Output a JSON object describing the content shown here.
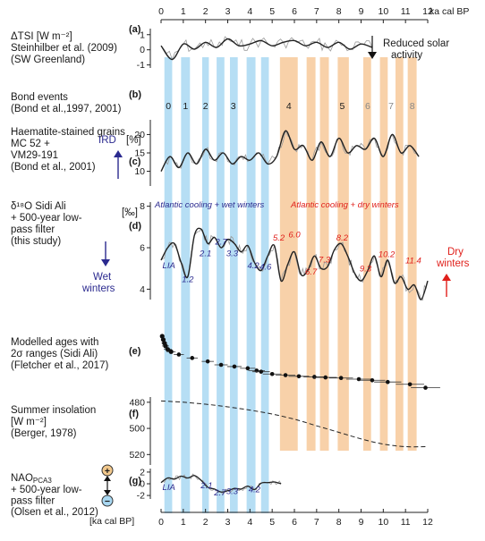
{
  "chart_data": {
    "type": "line",
    "top_axis_label": "ka cal BP",
    "bottom_axis_label": "[ka cal BP]",
    "x_ticks": [
      "0",
      "1",
      "2",
      "3",
      "4",
      "5",
      "6",
      "7",
      "8",
      "9",
      "10",
      "11",
      "12"
    ],
    "xlim": [
      0,
      12
    ],
    "colors": {
      "cool_wet_band": "#a9d8f2",
      "cool_dry_band": "#f7c99a",
      "blue_text": "#2b2a8f",
      "red_text": "#e0201b",
      "curve": "#222222",
      "raw": "#9a9a9a"
    },
    "bands_blue": [
      [
        0.15,
        0.5
      ],
      [
        0.9,
        1.3
      ],
      [
        1.85,
        2.15
      ],
      [
        2.5,
        2.85
      ],
      [
        3.1,
        3.45
      ],
      [
        3.85,
        4.25
      ],
      [
        4.5,
        4.85
      ]
    ],
    "bands_orange": [
      [
        5.35,
        6.15
      ],
      [
        6.55,
        6.95
      ],
      [
        7.15,
        7.55
      ],
      [
        7.95,
        8.45
      ],
      [
        9.1,
        9.45
      ],
      [
        9.85,
        10.2
      ],
      [
        10.55,
        10.9
      ],
      [
        11.1,
        11.5
      ]
    ],
    "panels": {
      "a": {
        "letter": "(a)",
        "label_lines": [
          "ΔTSI  [W m⁻²]",
          "Steinhilber et al. (2009)",
          "(SW Greenland)"
        ],
        "y_ticks": [
          "1",
          "0",
          "-1"
        ],
        "ylim": [
          -1.2,
          1.4
        ],
        "side_note": [
          "Reduced solar",
          "activity"
        ],
        "x": [
          0,
          0.5,
          1,
          1.5,
          2,
          2.5,
          3,
          3.5,
          4,
          4.5,
          5,
          5.5,
          6,
          6.5,
          7,
          7.5,
          8,
          8.5,
          9,
          9.5
        ],
        "y": [
          0.3,
          -0.5,
          0.4,
          0.1,
          0.5,
          0.2,
          0.7,
          0.3,
          0.4,
          0.6,
          0.3,
          0.5,
          0.6,
          0.3,
          0.5,
          0.2,
          0.5,
          0.1,
          0.4,
          0.2
        ]
      },
      "b": {
        "letter": "(b)",
        "label_lines": [
          "Bond events",
          "(Bond et al.,1997, 2001)"
        ],
        "events": [
          {
            "label": "0",
            "x": 0.33,
            "color": "#1a1a1a"
          },
          {
            "label": "1",
            "x": 1.1,
            "color": "#1a1a1a"
          },
          {
            "label": "2",
            "x": 2.0,
            "color": "#1a1a1a"
          },
          {
            "label": "3",
            "x": 3.25,
            "color": "#1a1a1a"
          },
          {
            "label": "4",
            "x": 5.75,
            "color": "#1a1a1a"
          },
          {
            "label": "5",
            "x": 8.15,
            "color": "#1a1a1a"
          },
          {
            "label": "6",
            "x": 9.3,
            "color": "#888888"
          },
          {
            "label": "7",
            "x": 10.35,
            "color": "#888888"
          },
          {
            "label": "8",
            "x": 11.3,
            "color": "#888888"
          }
        ]
      },
      "c": {
        "letter": "(c)",
        "label_lines": [
          "Haematite-stained grains",
          "MC 52 +",
          "VM29-191",
          "(Bond et al., 2001)"
        ],
        "unit": "[%]",
        "side_label": "IRD",
        "y_ticks": [
          "20",
          "15",
          "10"
        ],
        "ylim": [
          6,
          24
        ],
        "x": [
          0,
          0.4,
          0.8,
          1.2,
          1.6,
          2,
          2.4,
          2.8,
          3.2,
          3.6,
          4,
          4.4,
          4.8,
          5.2,
          5.6,
          6,
          6.4,
          6.8,
          7.2,
          7.6,
          8,
          8.4,
          8.8,
          9.2,
          9.6,
          10,
          10.4,
          10.8,
          11.2,
          11.6
        ],
        "y": [
          10,
          14,
          11,
          15,
          12,
          16,
          13,
          15,
          12,
          14,
          13,
          15,
          12,
          14,
          21,
          16,
          17,
          13,
          18,
          14,
          19,
          15,
          17,
          16,
          19,
          14,
          20,
          15,
          17,
          14
        ]
      },
      "d": {
        "letter": "(d)",
        "label_lines": [
          "δ¹⁸O Sidi Ali",
          "+ 500-year low-",
          "pass filter",
          "(this study)"
        ],
        "unit": "[‰]",
        "left_note": [
          "Wet",
          "winters"
        ],
        "right_note": [
          "Dry",
          "winters"
        ],
        "band_titles": {
          "blue": "Atlantic cooling + wet winters",
          "orange": "Atlantic cooling + dry winters"
        },
        "y_ticks": [
          "8",
          "6",
          "4"
        ],
        "ylim": [
          3.5,
          8.2
        ],
        "x": [
          0,
          0.3,
          0.6,
          0.9,
          1.2,
          1.5,
          1.8,
          2.1,
          2.4,
          2.7,
          3,
          3.3,
          3.6,
          3.9,
          4.2,
          4.5,
          4.8,
          5.1,
          5.4,
          5.7,
          6,
          6.3,
          6.6,
          6.9,
          7.2,
          7.5,
          7.8,
          8.1,
          8.4,
          8.7,
          9,
          9.3,
          9.6,
          9.9,
          10.2,
          10.5,
          10.8,
          11.1,
          11.4,
          11.7,
          12
        ],
        "y": [
          5.4,
          6.0,
          6.2,
          5.3,
          4.6,
          6.6,
          6.9,
          6.2,
          6.5,
          6.0,
          6.4,
          6.2,
          5.8,
          6.1,
          5.3,
          4.9,
          5.6,
          6.1,
          4.4,
          5.2,
          5.8,
          4.7,
          4.9,
          5.6,
          5.0,
          5.1,
          5.9,
          6.2,
          5.6,
          4.8,
          4.4,
          4.9,
          5.6,
          4.6,
          5.4,
          4.3,
          4.6,
          4.0,
          4.2,
          3.5,
          4.4
        ],
        "annotations": [
          {
            "text": "LIA",
            "x": 0.35,
            "y": 5.0,
            "color": "#2b2a8f"
          },
          {
            "text": "1.2",
            "x": 1.2,
            "y": 4.35,
            "color": "#2b2a8f"
          },
          {
            "text": "2.1",
            "x": 2.0,
            "y": 5.6,
            "color": "#2b2a8f"
          },
          {
            "text": "2.7",
            "x": 2.7,
            "y": 6.15,
            "color": "#2b2a8f"
          },
          {
            "text": "3.3",
            "x": 3.2,
            "y": 5.6,
            "color": "#2b2a8f"
          },
          {
            "text": "4.2",
            "x": 4.15,
            "y": 5.0,
            "color": "#2b2a8f"
          },
          {
            "text": "4.6",
            "x": 4.7,
            "y": 4.95,
            "color": "#2b2a8f"
          },
          {
            "text": "5.2",
            "x": 5.3,
            "y": 6.35,
            "color": "#e0201b"
          },
          {
            "text": "6.0",
            "x": 6.0,
            "y": 6.5,
            "color": "#e0201b"
          },
          {
            "text": "6.7",
            "x": 6.75,
            "y": 4.7,
            "color": "#e0201b"
          },
          {
            "text": "7.3",
            "x": 7.35,
            "y": 5.3,
            "color": "#e0201b"
          },
          {
            "text": "8.2",
            "x": 8.15,
            "y": 6.35,
            "color": "#e0201b"
          },
          {
            "text": "9.3",
            "x": 9.2,
            "y": 4.85,
            "color": "#e0201b"
          },
          {
            "text": "10.2",
            "x": 10.15,
            "y": 5.55,
            "color": "#e0201b"
          },
          {
            "text": "11.4",
            "x": 11.35,
            "y": 5.25,
            "color": "#e0201b"
          }
        ]
      },
      "e": {
        "letter": "(e)",
        "label_lines": [
          "Modelled ages with",
          "2σ ranges (Sidi Ali)",
          "(Fletcher et al., 2017)"
        ],
        "x": [
          0.05,
          0.1,
          0.15,
          0.2,
          0.3,
          0.45,
          0.8,
          1.4,
          2.1,
          2.7,
          3.3,
          3.9,
          4.3,
          4.5,
          5.0,
          5.6,
          6.2,
          6.9,
          7.4,
          8.1,
          8.9,
          9.5,
          10.2,
          11.2,
          11.9
        ],
        "y": [
          0.0,
          0.06,
          0.12,
          0.17,
          0.23,
          0.27,
          0.32,
          0.38,
          0.44,
          0.5,
          0.53,
          0.56,
          0.6,
          0.62,
          0.66,
          0.68,
          0.7,
          0.71,
          0.72,
          0.73,
          0.75,
          0.77,
          0.8,
          0.84,
          0.9
        ]
      },
      "f": {
        "letter": "(f)",
        "label_lines": [
          "Summer insolation",
          "[W m⁻²]",
          "(Berger, 1978)"
        ],
        "y_ticks": [
          "480",
          "500",
          "520"
        ],
        "ylim": [
          476,
          528
        ],
        "x": [
          0,
          1,
          2,
          3,
          4,
          5,
          6,
          7,
          8,
          9,
          10,
          11,
          12
        ],
        "y": [
          479,
          480,
          481.5,
          483.5,
          486,
          489,
          493,
          498,
          503,
          508,
          512,
          514,
          514
        ]
      },
      "g": {
        "letter": "(g)",
        "label_lines": [
          "NAO_PCA3",
          "+ 500-year low-",
          "pass filter",
          "(Olsen et al., 2012)"
        ],
        "plus_sign": "+",
        "minus_sign": "−",
        "y_ticks": [
          "2",
          "0",
          "-2"
        ],
        "ylim": [
          -2.6,
          2.6
        ],
        "x": [
          0,
          0.3,
          0.6,
          0.9,
          1.2,
          1.5,
          1.8,
          2.1,
          2.4,
          2.7,
          3,
          3.3,
          3.6,
          3.9,
          4.2,
          4.5,
          4.8,
          5.1,
          5.4
        ],
        "y": [
          0.2,
          1.0,
          0.8,
          1.3,
          1.0,
          1.4,
          0.6,
          -0.6,
          -0.9,
          -1.4,
          -1.2,
          -0.8,
          -0.9,
          -0.4,
          -1.0,
          0.1,
          0.2,
          0.3,
          0.0
        ],
        "annotations": [
          {
            "text": "LIA",
            "x": 0.35,
            "y": -1.05,
            "color": "#2b2a8f"
          },
          {
            "text": "2.1",
            "x": 2.05,
            "y": -0.8,
            "color": "#2b2a8f"
          },
          {
            "text": "2.7",
            "x": 2.65,
            "y": -2.0,
            "color": "#2b2a8f"
          },
          {
            "text": "3.3",
            "x": 3.2,
            "y": -1.75,
            "color": "#2b2a8f"
          },
          {
            "text": "4.2",
            "x": 4.2,
            "y": -1.45,
            "color": "#2b2a8f"
          }
        ]
      }
    }
  }
}
